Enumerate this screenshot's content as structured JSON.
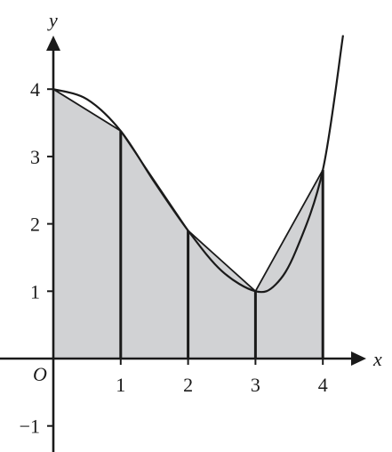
{
  "diagram": {
    "axis_labels": {
      "x": "x",
      "y": "y",
      "origin": "O"
    },
    "x_tick_labels": [
      "1",
      "2",
      "3",
      "4"
    ],
    "y_tick_labels": [
      "1",
      "2",
      "3",
      "4",
      "−1"
    ],
    "shaded_region_color": "#d1d2d4",
    "line_color": "#1a1a1a"
  },
  "chart_data": {
    "type": "area",
    "title": "",
    "xlabel": "x",
    "ylabel": "y",
    "xlim": [
      -0.4,
      4.6
    ],
    "ylim": [
      -1.4,
      4.9
    ],
    "grid": false,
    "series": [
      {
        "kind": "curve",
        "x": [
          0,
          0.5,
          1,
          1.5,
          2,
          2.5,
          3,
          3.3,
          3.6,
          4,
          4.3
        ],
        "y": [
          4,
          3.85,
          3.38,
          2.62,
          1.9,
          1.3,
          1.0,
          1.1,
          1.6,
          2.8,
          4.8
        ]
      },
      {
        "kind": "trapezium_chords",
        "x": [
          0,
          1,
          2,
          3,
          4
        ],
        "y": [
          4,
          3.38,
          1.9,
          1.0,
          2.8
        ]
      }
    ],
    "ordinates_at_x": [
      1,
      2,
      3,
      4
    ]
  }
}
